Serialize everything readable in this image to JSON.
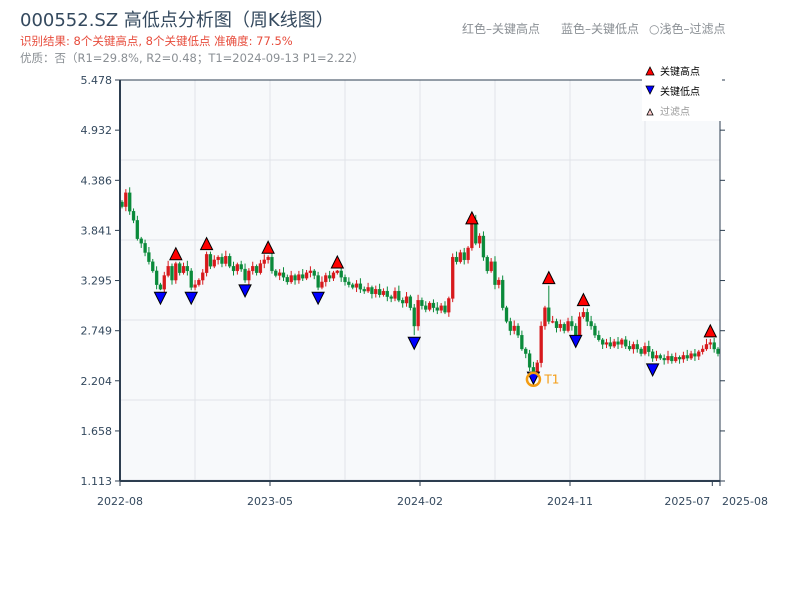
{
  "title": "000552.SZ 高低点分析图（周K线图）",
  "result_text": "识别结果: 8个关键高点, 8个关键低点  准确度: 77.5%",
  "quality_text": "优质：否（R1=29.8%, R2=0.48；T1=2024-09-13 P1=2.22）",
  "top_legend": [
    "红色–关键高点",
    "蓝色–关键低点",
    "○浅色–过滤点"
  ],
  "colors": {
    "up": "#d7191c",
    "down": "#0a8a3a",
    "high_marker": "#ff0000",
    "low_marker": "#0000ff",
    "t1": "#f39c12",
    "axis": "#2d3e50",
    "plot_bg": "#f7f9fb",
    "grid": "#e1e4e8"
  },
  "chart_data": {
    "type": "candlestick",
    "title": "000552.SZ 高低点分析图（周K线图）",
    "xlabel": "",
    "ylabel": "",
    "ylim": [
      1.113,
      5.478
    ],
    "y_ticks": [
      "1.113",
      "1.658",
      "2.204",
      "2.749",
      "3.295",
      "3.841",
      "4.386",
      "4.932",
      "5.478"
    ],
    "x_ticks": [
      {
        "label": "2022-08",
        "index": 0
      },
      {
        "label": "2023-05",
        "index": 39
      },
      {
        "label": "2024-02",
        "index": 78
      },
      {
        "label": "2024-11",
        "index": 117
      },
      {
        "label": "2025-07",
        "index": 154
      },
      {
        "label": "2025-08",
        "index": 156
      }
    ],
    "grid": true,
    "legend": {
      "placement": "top-right",
      "items": [
        {
          "label": "关键高点",
          "marker": "triangle-up",
          "color": "#ff0000"
        },
        {
          "label": "关键低点",
          "marker": "triangle-down",
          "color": "#0000ff"
        },
        {
          "label": "过滤点",
          "marker": "triangle-up-hollow",
          "color": "#ffcccc"
        }
      ]
    },
    "start_open": 4.15,
    "closes": [
      4.1,
      4.25,
      4.05,
      3.95,
      3.75,
      3.7,
      3.6,
      3.5,
      3.4,
      3.25,
      3.2,
      3.35,
      3.45,
      3.3,
      3.48,
      3.38,
      3.45,
      3.4,
      3.22,
      3.25,
      3.3,
      3.38,
      3.58,
      3.45,
      3.52,
      3.55,
      3.48,
      3.56,
      3.45,
      3.4,
      3.47,
      3.42,
      3.3,
      3.4,
      3.45,
      3.38,
      3.48,
      3.52,
      3.55,
      3.4,
      3.35,
      3.38,
      3.33,
      3.28,
      3.35,
      3.3,
      3.36,
      3.32,
      3.38,
      3.4,
      3.35,
      3.22,
      3.28,
      3.35,
      3.32,
      3.38,
      3.4,
      3.33,
      3.28,
      3.25,
      3.22,
      3.26,
      3.2,
      3.18,
      3.22,
      3.15,
      3.2,
      3.14,
      3.18,
      3.12,
      3.1,
      3.18,
      3.08,
      3.05,
      3.12,
      3.0,
      2.8,
      3.08,
      3.02,
      2.98,
      3.05,
      3.0,
      2.97,
      3.02,
      2.95,
      3.1,
      3.55,
      3.5,
      3.6,
      3.52,
      3.65,
      3.95,
      3.7,
      3.78,
      3.55,
      3.4,
      3.5,
      3.25,
      3.3,
      3.0,
      2.85,
      2.75,
      2.8,
      2.7,
      2.55,
      2.5,
      2.35,
      2.3,
      2.4,
      2.8,
      3.0,
      2.85,
      2.85,
      2.78,
      2.82,
      2.75,
      2.85,
      2.8,
      2.7,
      2.9,
      2.95,
      2.85,
      2.8,
      2.7,
      2.65,
      2.6,
      2.62,
      2.58,
      2.63,
      2.6,
      2.65,
      2.58,
      2.55,
      2.6,
      2.55,
      2.5,
      2.58,
      2.52,
      2.45,
      2.48,
      2.45,
      2.43,
      2.47,
      2.42,
      2.46,
      2.44,
      2.48,
      2.45,
      2.5,
      2.47,
      2.52,
      2.55,
      2.6,
      2.62,
      2.55,
      2.5
    ],
    "key_highs": [
      {
        "index": 14,
        "price": 3.5
      },
      {
        "index": 22,
        "price": 3.61
      },
      {
        "index": 38,
        "price": 3.57
      },
      {
        "index": 56,
        "price": 3.41
      },
      {
        "index": 91,
        "price": 3.89
      },
      {
        "index": 111,
        "price": 3.24
      },
      {
        "index": 120,
        "price": 3.0
      },
      {
        "index": 153,
        "price": 2.66
      }
    ],
    "key_lows": [
      {
        "index": 10,
        "price": 3.19
      },
      {
        "index": 18,
        "price": 3.19
      },
      {
        "index": 32,
        "price": 3.27
      },
      {
        "index": 51,
        "price": 3.19
      },
      {
        "index": 76,
        "price": 2.7
      },
      {
        "index": 107,
        "price": 2.32
      },
      {
        "index": 118,
        "price": 2.72
      },
      {
        "index": 138,
        "price": 2.41
      }
    ],
    "annotation": {
      "label": "T1",
      "index": 107,
      "date": "2024-09-13",
      "price": 2.22
    }
  }
}
